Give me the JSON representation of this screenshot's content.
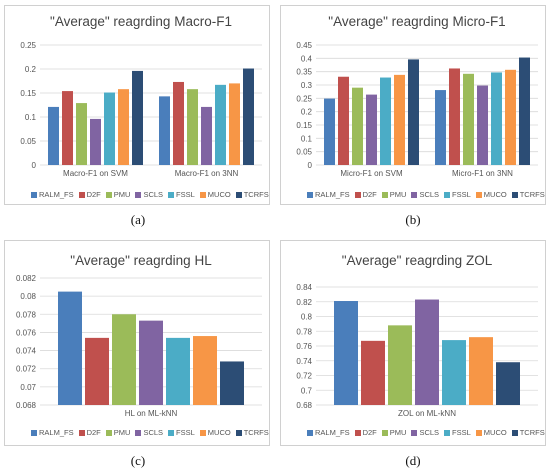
{
  "captions": [
    "(a)",
    "(b)",
    "(c)",
    "(d)"
  ],
  "legend": [
    "RALM_FS",
    "D2F",
    "PMU",
    "SCLS",
    "FSSL",
    "MUCO",
    "TCRFS"
  ],
  "colors": [
    "#4a7ebb",
    "#c0504d",
    "#9bbb59",
    "#8064a2",
    "#4bacc6",
    "#f79646",
    "#2c4d75"
  ],
  "chart_data": [
    {
      "type": "bar",
      "title": "\"Average\" reagrding Macro-F1",
      "categories": [
        "Macro-F1 on SVM",
        "Macro-F1 on 3NN"
      ],
      "ylim": [
        0,
        0.25
      ],
      "yticks": [
        "0",
        "0.05",
        "0.1",
        "0.15",
        "0.2",
        "0.25"
      ],
      "grid": true,
      "series": [
        {
          "name": "RALM_FS",
          "values": [
            0.121,
            0.143
          ]
        },
        {
          "name": "D2F",
          "values": [
            0.154,
            0.173
          ]
        },
        {
          "name": "PMU",
          "values": [
            0.129,
            0.158
          ]
        },
        {
          "name": "SCLS",
          "values": [
            0.096,
            0.121
          ]
        },
        {
          "name": "FSSL",
          "values": [
            0.151,
            0.167
          ]
        },
        {
          "name": "MUCO",
          "values": [
            0.158,
            0.17
          ]
        },
        {
          "name": "TCRFS",
          "values": [
            0.196,
            0.201
          ]
        }
      ]
    },
    {
      "type": "bar",
      "title": "\"Average\" reagrding Micro-F1",
      "categories": [
        "Micro-F1 on SVM",
        "Micro-F1 on 3NN"
      ],
      "ylim": [
        0,
        0.45
      ],
      "yticks": [
        "0",
        "0.05",
        "0.1",
        "0.15",
        "0.2",
        "0.25",
        "0.3",
        "0.35",
        "0.4",
        "0.45"
      ],
      "grid": true,
      "series": [
        {
          "name": "RALM_FS",
          "values": [
            0.249,
            0.281
          ]
        },
        {
          "name": "D2F",
          "values": [
            0.331,
            0.362
          ]
        },
        {
          "name": "PMU",
          "values": [
            0.29,
            0.342
          ]
        },
        {
          "name": "SCLS",
          "values": [
            0.264,
            0.298
          ]
        },
        {
          "name": "FSSL",
          "values": [
            0.328,
            0.347
          ]
        },
        {
          "name": "MUCO",
          "values": [
            0.338,
            0.357
          ]
        },
        {
          "name": "TCRFS",
          "values": [
            0.396,
            0.403
          ]
        }
      ]
    },
    {
      "type": "bar",
      "title": "\"Average\" reagrding HL",
      "categories": [
        "HL on ML-kNN"
      ],
      "ylim": [
        0.068,
        0.082
      ],
      "yticks": [
        "0.068",
        "0.07",
        "0.072",
        "0.074",
        "0.076",
        "0.078",
        "0.08",
        "0.082"
      ],
      "grid": true,
      "series": [
        {
          "name": "RALM_FS",
          "values": [
            0.0805
          ]
        },
        {
          "name": "D2F",
          "values": [
            0.0754
          ]
        },
        {
          "name": "PMU",
          "values": [
            0.078
          ]
        },
        {
          "name": "SCLS",
          "values": [
            0.0773
          ]
        },
        {
          "name": "FSSL",
          "values": [
            0.0754
          ]
        },
        {
          "name": "MUCO",
          "values": [
            0.0756
          ]
        },
        {
          "name": "TCRFS",
          "values": [
            0.0728
          ]
        }
      ]
    },
    {
      "type": "bar",
      "title": "\"Average\" reagrding ZOL",
      "categories": [
        "ZOL on ML-kNN"
      ],
      "ylim": [
        0.68,
        0.84
      ],
      "yticks": [
        "0.68",
        "0.7",
        "0.72",
        "0.74",
        "0.76",
        "0.78",
        "0.8",
        "0.82",
        "0.84"
      ],
      "grid": true,
      "series": [
        {
          "name": "RALM_FS",
          "values": [
            0.821
          ]
        },
        {
          "name": "D2F",
          "values": [
            0.767
          ]
        },
        {
          "name": "PMU",
          "values": [
            0.788
          ]
        },
        {
          "name": "SCLS",
          "values": [
            0.823
          ]
        },
        {
          "name": "FSSL",
          "values": [
            0.768
          ]
        },
        {
          "name": "MUCO",
          "values": [
            0.772
          ]
        },
        {
          "name": "TCRFS",
          "values": [
            0.738
          ]
        }
      ]
    }
  ]
}
